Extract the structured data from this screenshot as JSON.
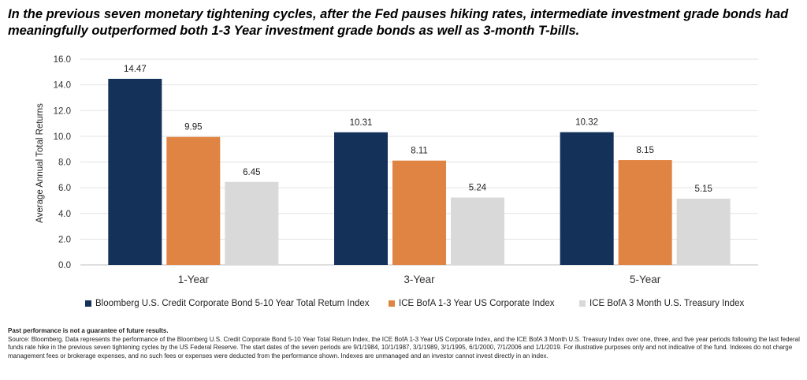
{
  "headline": "In the previous seven monetary tightening cycles, after the Fed pauses hiking rates, intermediate investment grade bonds had meaningfully outperformed both 1-3 Year investment grade bonds as well as 3-month T-bills.",
  "chart_data": {
    "type": "bar",
    "title": "",
    "xlabel": "",
    "ylabel": "Average Annual Total Returns",
    "ylim": [
      0,
      16
    ],
    "yticks": [
      "0.0",
      "2.0",
      "4.0",
      "6.0",
      "8.0",
      "10.0",
      "12.0",
      "14.0",
      "16.0"
    ],
    "grid": true,
    "legend_position": "bottom",
    "categories": [
      "1-Year",
      "3-Year",
      "5-Year"
    ],
    "series": [
      {
        "name": "Bloomberg U.S. Credit Corporate Bond 5-10 Year Total Retum Index",
        "color": "#14315A",
        "values": [
          14.47,
          10.31,
          10.32
        ],
        "labels": [
          "14.47",
          "10.31",
          "10.32"
        ]
      },
      {
        "name": "ICE BofA 1-3 Year US Corporate Index",
        "color": "#E08443",
        "values": [
          9.95,
          8.11,
          8.15
        ],
        "labels": [
          "9.95",
          "8.11",
          "8.15"
        ]
      },
      {
        "name": "ICE BofA 3 Month U.S. Treasury Index",
        "color": "#D9D9D9",
        "values": [
          6.45,
          5.24,
          5.15
        ],
        "labels": [
          "6.45",
          "5.24",
          "5.15"
        ]
      }
    ]
  },
  "footnote": {
    "disclaimer": "Past performance is not a guarantee of future results.",
    "source": "Source: Bloomberg. Data represents the performance of the Bloomberg U.S. Credit Corporate Bond 5-10 Year Total Return Index, the ICE BofA 1-3 Year US Corporate Index, and the ICE BofA 3 Month U.S. Treasury Index over one, three, and five year periods following the last federal funds rate hike in the previous seven tightening cycles by the US Federal Reserve. The start dates of the seven periods are 9/1/1984, 10/1/1987, 3/1/1989, 3/1/1995, 6/1/2000, 7/1/2006 and 1/1/2019. For illustrative purposes only and not indicative of the fund. Indexes do not charge management fees or brokerage expenses, and no such fees or expenses were deducted from the performance shown. Indexes are unmanaged and an investor cannot invest directly in an index."
  }
}
